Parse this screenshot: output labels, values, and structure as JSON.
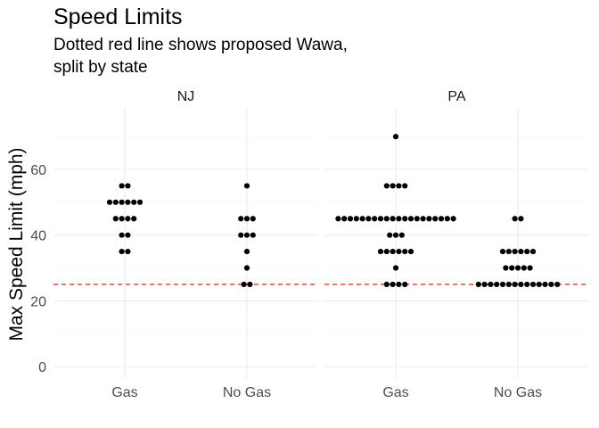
{
  "chart_data": {
    "type": "scatter",
    "title": "Speed Limits",
    "subtitle_lines": [
      "Dotted red line shows proposed Wawa,",
      "split by state"
    ],
    "xlabel": "",
    "ylabel": "Max Speed Limit (mph)",
    "categories": [
      "Gas",
      "No Gas"
    ],
    "y_ticks": [
      0,
      20,
      40,
      60
    ],
    "ylim": [
      0,
      72
    ],
    "reference_line": {
      "y": 25,
      "style": "dashed",
      "color": "#e8302a"
    },
    "grid": true,
    "point_color": "#000000",
    "facets": [
      {
        "label": "NJ",
        "groups": [
          {
            "category": "Gas",
            "values": [
              35,
              35,
              40,
              40,
              45,
              45,
              45,
              45,
              50,
              50,
              50,
              50,
              50,
              50,
              55,
              55
            ]
          },
          {
            "category": "No Gas",
            "values": [
              25,
              25,
              30,
              35,
              40,
              40,
              40,
              45,
              45,
              45,
              55
            ]
          }
        ]
      },
      {
        "label": "PA",
        "groups": [
          {
            "category": "Gas",
            "values": [
              25,
              25,
              25,
              25,
              30,
              35,
              35,
              35,
              35,
              35,
              35,
              40,
              40,
              40,
              45,
              45,
              45,
              45,
              45,
              45,
              45,
              45,
              45,
              45,
              45,
              45,
              45,
              45,
              45,
              45,
              45,
              45,
              45,
              45,
              55,
              55,
              55,
              55,
              70
            ]
          },
          {
            "category": "No Gas",
            "values": [
              25,
              25,
              25,
              25,
              25,
              25,
              25,
              25,
              25,
              25,
              25,
              25,
              25,
              25,
              30,
              30,
              30,
              30,
              30,
              35,
              35,
              35,
              35,
              35,
              35,
              45,
              45
            ]
          }
        ]
      }
    ]
  }
}
